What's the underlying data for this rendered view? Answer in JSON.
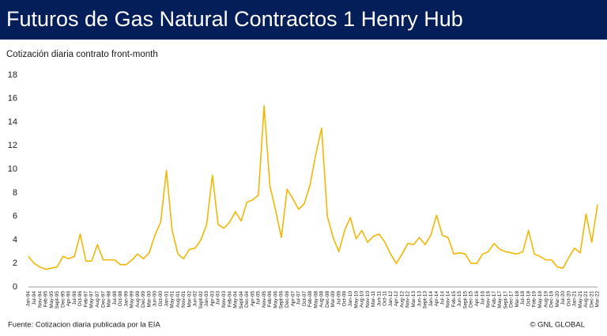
{
  "chart_data": {
    "type": "line",
    "title": "Futuros de Gas Natural Contractos 1 Henry Hub",
    "subtitle": "Cotización diaria contrato front-month",
    "source": "Fuente: Cotizacion diaria publicada por la EIA",
    "credit": "© GNL GLOBAL",
    "categories": [
      "Jan-94",
      "Jul-94",
      "Nov-94",
      "Feb-95",
      "May-95",
      "Sept-95",
      "Dec-95",
      "Apr-96",
      "Jul-96",
      "Oct-96",
      "Feb-97",
      "May-97",
      "Aug-97",
      "Dec-97",
      "Mar-98",
      "Jul-98",
      "Oct-98",
      "Jan-99",
      "May-99",
      "Aug-99",
      "Dec-99",
      "Mar-00",
      "Jun-00",
      "Oct-00",
      "Jan-01",
      "May-01",
      "Aug-01",
      "Nov-01",
      "Mar-02",
      "Jun-02",
      "Sept-02",
      "Jan-03",
      "Apr-03",
      "Jul-03",
      "Nov-03",
      "Feb-04",
      "May-04",
      "Sept-04",
      "Dec-04",
      "Apr-05",
      "Jul-05",
      "Nov-05",
      "Feb-06",
      "May-06",
      "Sept-06",
      "Dec-06",
      "Apr-07",
      "Jul-07",
      "Oct-07",
      "Feb-08",
      "May-08",
      "Aug-08",
      "Dec-08",
      "Mar-09",
      "Jul-09",
      "Oct-09",
      "Jan-10",
      "May-10",
      "Aug-10",
      "Nov-10",
      "Mar-11",
      "Jun-11",
      "Oct-11",
      "Jan-12",
      "Apr-12",
      "Aug-12",
      "Nov-12",
      "Mar-13",
      "Jun-13",
      "Sept-13",
      "Jan-14",
      "Apr-14",
      "Jul-14",
      "Nov-14",
      "Feb-15",
      "Jun-15",
      "Sept-15",
      "Dec-15",
      "Apr-16",
      "Jul-16",
      "Nov-16",
      "Feb-17",
      "May-17",
      "Sept-17",
      "Dec-17",
      "Mar-18",
      "Jul-18",
      "Oct-18",
      "Feb-19",
      "May-19",
      "Aug-19",
      "Dec-19",
      "Mar-20",
      "Jul-20",
      "Oct-20",
      "Jan-21",
      "May-21",
      "Aug-21",
      "Dec-21",
      "Mar-22"
    ],
    "series": [
      {
        "name": "Henry Hub",
        "color": "#f2b705",
        "values": [
          2.6,
          2.0,
          1.7,
          1.5,
          1.6,
          1.7,
          2.6,
          2.4,
          2.6,
          4.5,
          2.2,
          2.2,
          3.6,
          2.3,
          2.3,
          2.3,
          1.9,
          1.9,
          2.3,
          2.8,
          2.4,
          2.9,
          4.4,
          5.5,
          9.9,
          4.8,
          2.8,
          2.4,
          3.2,
          3.3,
          4.0,
          5.3,
          9.5,
          5.3,
          5.0,
          5.5,
          6.4,
          5.6,
          7.2,
          7.4,
          7.8,
          15.4,
          8.6,
          6.5,
          4.2,
          8.3,
          7.5,
          6.6,
          7.1,
          8.7,
          11.3,
          13.5,
          6.0,
          4.2,
          3.0,
          4.8,
          5.9,
          4.1,
          4.8,
          3.8,
          4.3,
          4.5,
          3.8,
          2.8,
          2.0,
          2.8,
          3.7,
          3.6,
          4.2,
          3.6,
          4.4,
          6.1,
          4.4,
          4.2,
          2.8,
          2.9,
          2.8,
          2.0,
          2.0,
          2.8,
          3.0,
          3.7,
          3.2,
          3.0,
          2.9,
          2.8,
          3.0,
          4.8,
          2.8,
          2.6,
          2.3,
          2.3,
          1.7,
          1.6,
          2.5,
          3.3,
          2.9,
          6.2,
          3.8,
          7.0
        ]
      }
    ],
    "ylim": [
      0,
      18
    ],
    "yticks": [
      0,
      2,
      4,
      6,
      8,
      10,
      12,
      14,
      16,
      18
    ],
    "grid": false
  }
}
